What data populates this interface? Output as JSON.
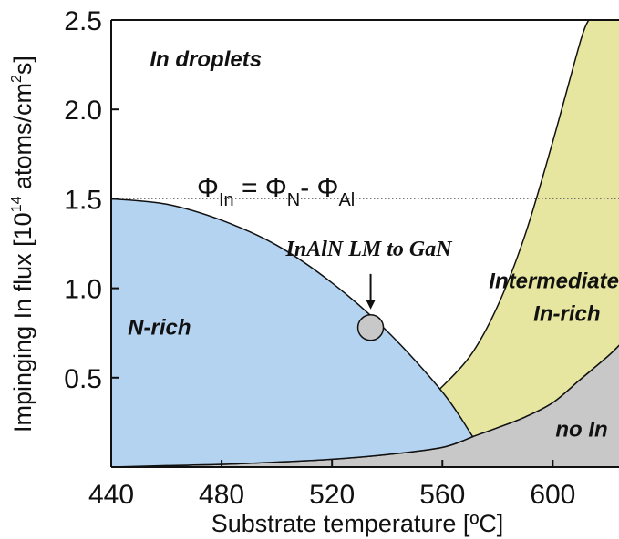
{
  "chart_data": {
    "type": "area",
    "xlabel": "Substrate temperature [ºC]",
    "ylabel": {
      "main": "Impinging In flux [10",
      "exp": "14",
      "unit": " atoms/cm",
      "unit_exp": "2",
      "end": "s]"
    },
    "xlim": [
      440,
      624
    ],
    "ylim": [
      0,
      2.5
    ],
    "x_ticks": [
      "440",
      "480",
      "520",
      "560",
      "600"
    ],
    "y_ticks": [
      "0.5",
      "1.0",
      "1.5",
      "2.0",
      "2.5"
    ],
    "grid": false,
    "colors": {
      "n_rich": "#b4d3f0",
      "intermediate": "#e6e6a0",
      "no_in": "#c8c8c8",
      "guide_line": "#666666",
      "marker": "#c8c8c8"
    },
    "regions": [
      {
        "label": "In droplets",
        "label_at": [
          454,
          2.24
        ]
      },
      {
        "label": "N-rich",
        "label_at": [
          446,
          0.74
        ],
        "boundary": [
          [
            440,
            1.5
          ],
          [
            460,
            1.47
          ],
          [
            480,
            1.38
          ],
          [
            500,
            1.24
          ],
          [
            520,
            1.03
          ],
          [
            540,
            0.76
          ],
          [
            560,
            0.42
          ],
          [
            571,
            0.17
          ],
          [
            560,
            0.11
          ],
          [
            540,
            0.07
          ],
          [
            520,
            0.044
          ],
          [
            500,
            0.028
          ],
          [
            480,
            0.015
          ],
          [
            460,
            0.008
          ],
          [
            440,
            0.0
          ]
        ]
      },
      {
        "label": "Intermediate",
        "label2": "In-rich",
        "label_at": [
          594,
          1.0
        ],
        "left_edge": [
          [
            558,
            0.42
          ],
          [
            570,
            0.62
          ],
          [
            580,
            0.9
          ],
          [
            590,
            1.3
          ],
          [
            600,
            1.82
          ],
          [
            610,
            2.38
          ],
          [
            613,
            2.5
          ]
        ],
        "right_edge": [
          [
            571,
            0.17
          ],
          [
            580,
            0.22
          ],
          [
            590,
            0.28
          ],
          [
            600,
            0.36
          ],
          [
            610,
            0.49
          ],
          [
            620,
            0.62
          ],
          [
            624,
            0.68
          ]
        ]
      },
      {
        "label": "no In",
        "label_at": [
          601,
          0.17
        ],
        "top_edge": [
          [
            440,
            0.0
          ],
          [
            460,
            0.008
          ],
          [
            480,
            0.015
          ],
          [
            500,
            0.028
          ],
          [
            520,
            0.044
          ],
          [
            540,
            0.07
          ],
          [
            560,
            0.11
          ],
          [
            571,
            0.17
          ],
          [
            580,
            0.22
          ],
          [
            590,
            0.28
          ],
          [
            600,
            0.36
          ],
          [
            610,
            0.49
          ],
          [
            620,
            0.62
          ],
          [
            624,
            0.68
          ]
        ]
      }
    ],
    "guide_line": {
      "y": 1.5,
      "label": "= Φ",
      "equation": {
        "phi": "Φ",
        "sub_in": "In",
        "eq": " = Φ",
        "sub_n": "N",
        "minus": "- Φ",
        "sub_al": "Al"
      }
    },
    "annotation": {
      "label": "InAlN LM to GaN",
      "point": [
        534,
        0.78
      ],
      "arrow_from": [
        534,
        1.08
      ]
    }
  }
}
